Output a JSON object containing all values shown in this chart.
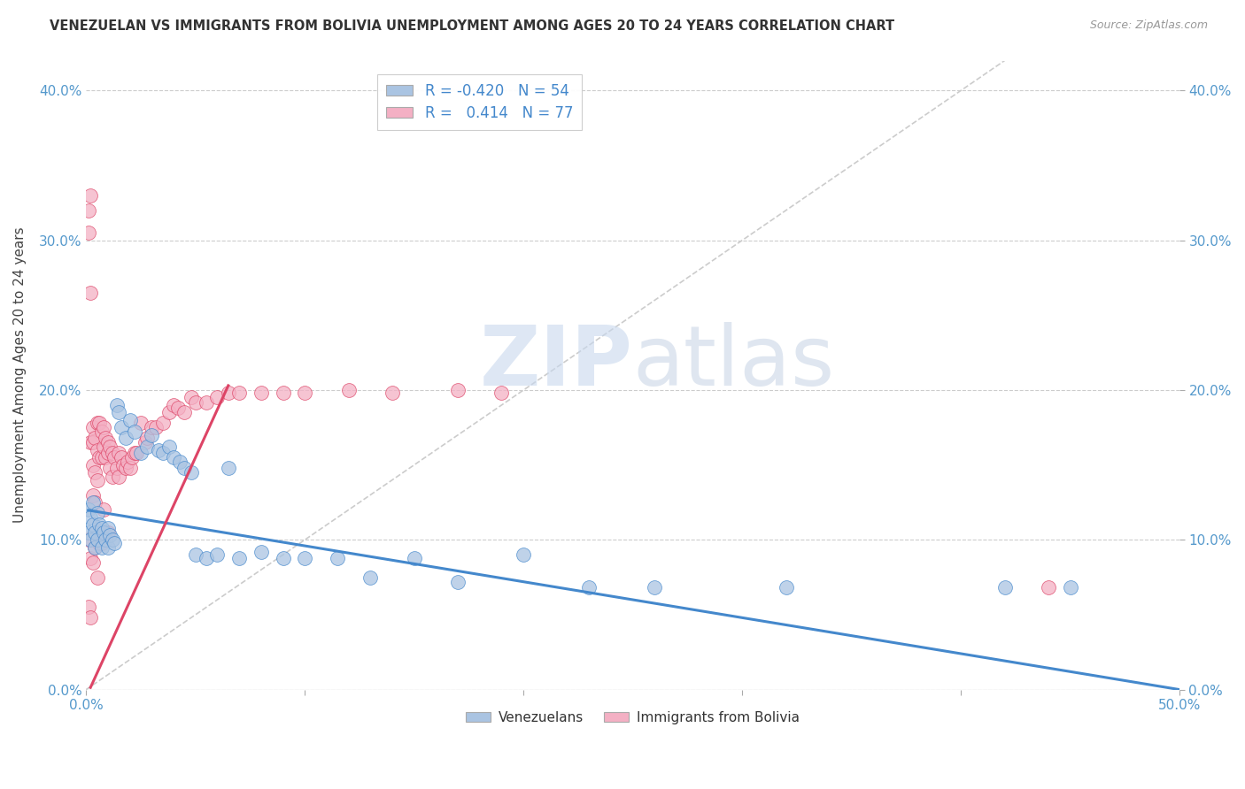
{
  "title": "VENEZUELAN VS IMMIGRANTS FROM BOLIVIA UNEMPLOYMENT AMONG AGES 20 TO 24 YEARS CORRELATION CHART",
  "source": "Source: ZipAtlas.com",
  "ylabel": "Unemployment Among Ages 20 to 24 years",
  "xlim": [
    0.0,
    0.5
  ],
  "ylim": [
    0.0,
    0.42
  ],
  "xticks": [
    0.0,
    0.1,
    0.2,
    0.3,
    0.4,
    0.5
  ],
  "xticklabels_ends": [
    "0.0%",
    "50.0%"
  ],
  "yticks": [
    0.0,
    0.1,
    0.2,
    0.3,
    0.4
  ],
  "yticklabels": [
    "0.0%",
    "10.0%",
    "20.0%",
    "30.0%",
    "40.0%"
  ],
  "venezuelan_color": "#aac4e2",
  "bolivia_color": "#f4b0c4",
  "trendline_venezuelan_color": "#4488cc",
  "trendline_bolivia_color": "#dd4466",
  "diagonal_color": "#cccccc",
  "R_venezuelan": -0.42,
  "N_venezuelan": 54,
  "R_bolivia": 0.414,
  "N_bolivia": 77,
  "legend_x_venezuelans": "Venezuelans",
  "legend_x_bolivia": "Immigrants from Bolivia",
  "venezuelan_x": [
    0.001,
    0.001,
    0.002,
    0.002,
    0.003,
    0.003,
    0.004,
    0.004,
    0.005,
    0.005,
    0.006,
    0.007,
    0.007,
    0.008,
    0.009,
    0.01,
    0.01,
    0.011,
    0.012,
    0.013,
    0.014,
    0.015,
    0.016,
    0.018,
    0.02,
    0.022,
    0.025,
    0.028,
    0.03,
    0.033,
    0.035,
    0.038,
    0.04,
    0.043,
    0.045,
    0.048,
    0.05,
    0.055,
    0.06,
    0.065,
    0.07,
    0.08,
    0.09,
    0.1,
    0.115,
    0.13,
    0.15,
    0.17,
    0.2,
    0.23,
    0.26,
    0.32,
    0.42,
    0.45
  ],
  "venezuelan_y": [
    0.12,
    0.105,
    0.115,
    0.1,
    0.125,
    0.11,
    0.105,
    0.095,
    0.118,
    0.1,
    0.11,
    0.108,
    0.095,
    0.105,
    0.1,
    0.108,
    0.095,
    0.103,
    0.1,
    0.098,
    0.19,
    0.185,
    0.175,
    0.168,
    0.18,
    0.172,
    0.158,
    0.162,
    0.17,
    0.16,
    0.158,
    0.162,
    0.155,
    0.152,
    0.148,
    0.145,
    0.09,
    0.088,
    0.09,
    0.148,
    0.088,
    0.092,
    0.088,
    0.088,
    0.088,
    0.075,
    0.088,
    0.072,
    0.09,
    0.068,
    0.068,
    0.068,
    0.068,
    0.068
  ],
  "bolivia_x": [
    0.001,
    0.001,
    0.001,
    0.001,
    0.002,
    0.002,
    0.002,
    0.002,
    0.002,
    0.003,
    0.003,
    0.003,
    0.003,
    0.003,
    0.004,
    0.004,
    0.004,
    0.004,
    0.005,
    0.005,
    0.005,
    0.005,
    0.006,
    0.006,
    0.006,
    0.007,
    0.007,
    0.007,
    0.008,
    0.008,
    0.008,
    0.009,
    0.009,
    0.009,
    0.01,
    0.01,
    0.01,
    0.011,
    0.011,
    0.012,
    0.012,
    0.013,
    0.014,
    0.015,
    0.015,
    0.016,
    0.017,
    0.018,
    0.019,
    0.02,
    0.021,
    0.022,
    0.023,
    0.025,
    0.027,
    0.028,
    0.03,
    0.032,
    0.035,
    0.038,
    0.04,
    0.042,
    0.045,
    0.048,
    0.05,
    0.055,
    0.06,
    0.065,
    0.07,
    0.08,
    0.09,
    0.1,
    0.12,
    0.14,
    0.17,
    0.19,
    0.44
  ],
  "bolivia_y": [
    0.32,
    0.305,
    0.1,
    0.055,
    0.33,
    0.265,
    0.165,
    0.088,
    0.048,
    0.175,
    0.165,
    0.15,
    0.13,
    0.085,
    0.168,
    0.145,
    0.125,
    0.095,
    0.178,
    0.16,
    0.14,
    0.075,
    0.178,
    0.155,
    0.098,
    0.172,
    0.155,
    0.098,
    0.175,
    0.162,
    0.12,
    0.168,
    0.155,
    0.105,
    0.165,
    0.158,
    0.105,
    0.162,
    0.148,
    0.158,
    0.142,
    0.155,
    0.148,
    0.158,
    0.142,
    0.155,
    0.15,
    0.148,
    0.152,
    0.148,
    0.155,
    0.158,
    0.158,
    0.178,
    0.165,
    0.168,
    0.175,
    0.175,
    0.178,
    0.185,
    0.19,
    0.188,
    0.185,
    0.195,
    0.192,
    0.192,
    0.195,
    0.198,
    0.198,
    0.198,
    0.198,
    0.198,
    0.2,
    0.198,
    0.2,
    0.198,
    0.068
  ]
}
